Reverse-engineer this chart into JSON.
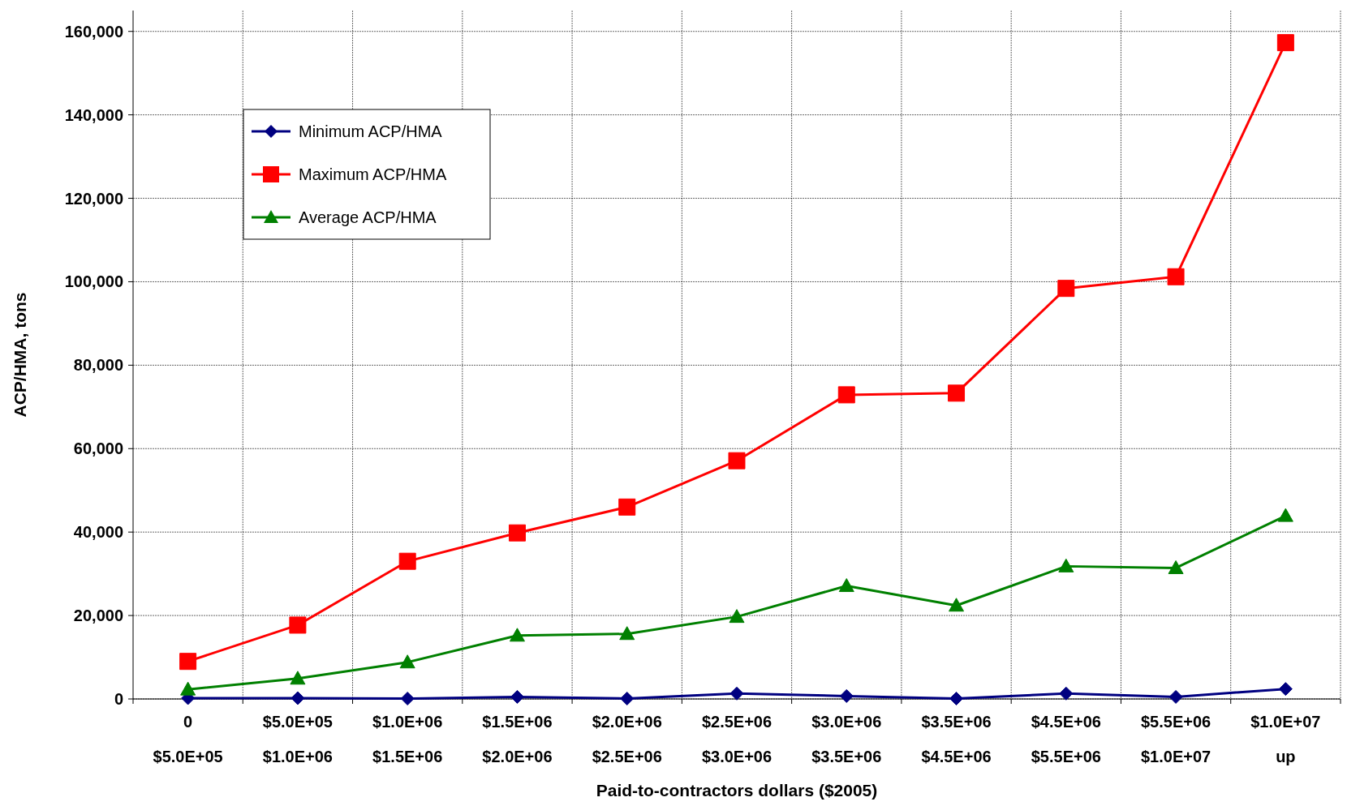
{
  "chart_data": {
    "type": "line",
    "xlabel": "Paid-to-contractors dollars ($2005)",
    "ylabel": "ACP/HMA, tons",
    "categories": [
      "0\n$5.0E+05",
      "$5.0E+05\n$1.0E+06",
      "$1.0E+06\n$1.5E+06",
      "$1.5E+06\n$2.0E+06",
      "$2.0E+06\n$2.5E+06",
      "$2.5E+06\n$3.0E+06",
      "$3.0E+06\n$3.5E+06",
      "$3.5E+06\n$4.5E+06",
      "$4.5E+06\n$5.5E+06",
      "$5.5E+06\n$1.0E+07",
      "$1.0E+07\nup"
    ],
    "series": [
      {
        "name": "Minimum ACP/HMA",
        "color": "#000080",
        "marker": "diamond",
        "values": [
          200,
          200,
          100,
          500,
          100,
          1300,
          700,
          100,
          1300,
          500,
          2400
        ]
      },
      {
        "name": "Maximum ACP/HMA",
        "color": "#ff0000",
        "marker": "square",
        "values": [
          9000,
          17700,
          33000,
          39800,
          46000,
          57100,
          72900,
          73300,
          98400,
          101200,
          157300
        ]
      },
      {
        "name": "Average ACP/HMA",
        "color": "#008000",
        "marker": "triangle",
        "values": [
          2300,
          4900,
          8800,
          15200,
          15600,
          19700,
          27100,
          22400,
          31800,
          31400,
          43900
        ]
      }
    ],
    "ylim": [
      0,
      165000
    ],
    "yticks": [
      {
        "value": 0,
        "label": "0"
      },
      {
        "value": 20000,
        "label": "20,000"
      },
      {
        "value": 40000,
        "label": "40,000"
      },
      {
        "value": 60000,
        "label": "60,000"
      },
      {
        "value": 80000,
        "label": "80,000"
      },
      {
        "value": 100000,
        "label": "100,000"
      },
      {
        "value": 120000,
        "label": "120,000"
      },
      {
        "value": 140000,
        "label": "140,000"
      },
      {
        "value": 160000,
        "label": "160,000"
      }
    ],
    "grid": true,
    "legend": "top left"
  }
}
